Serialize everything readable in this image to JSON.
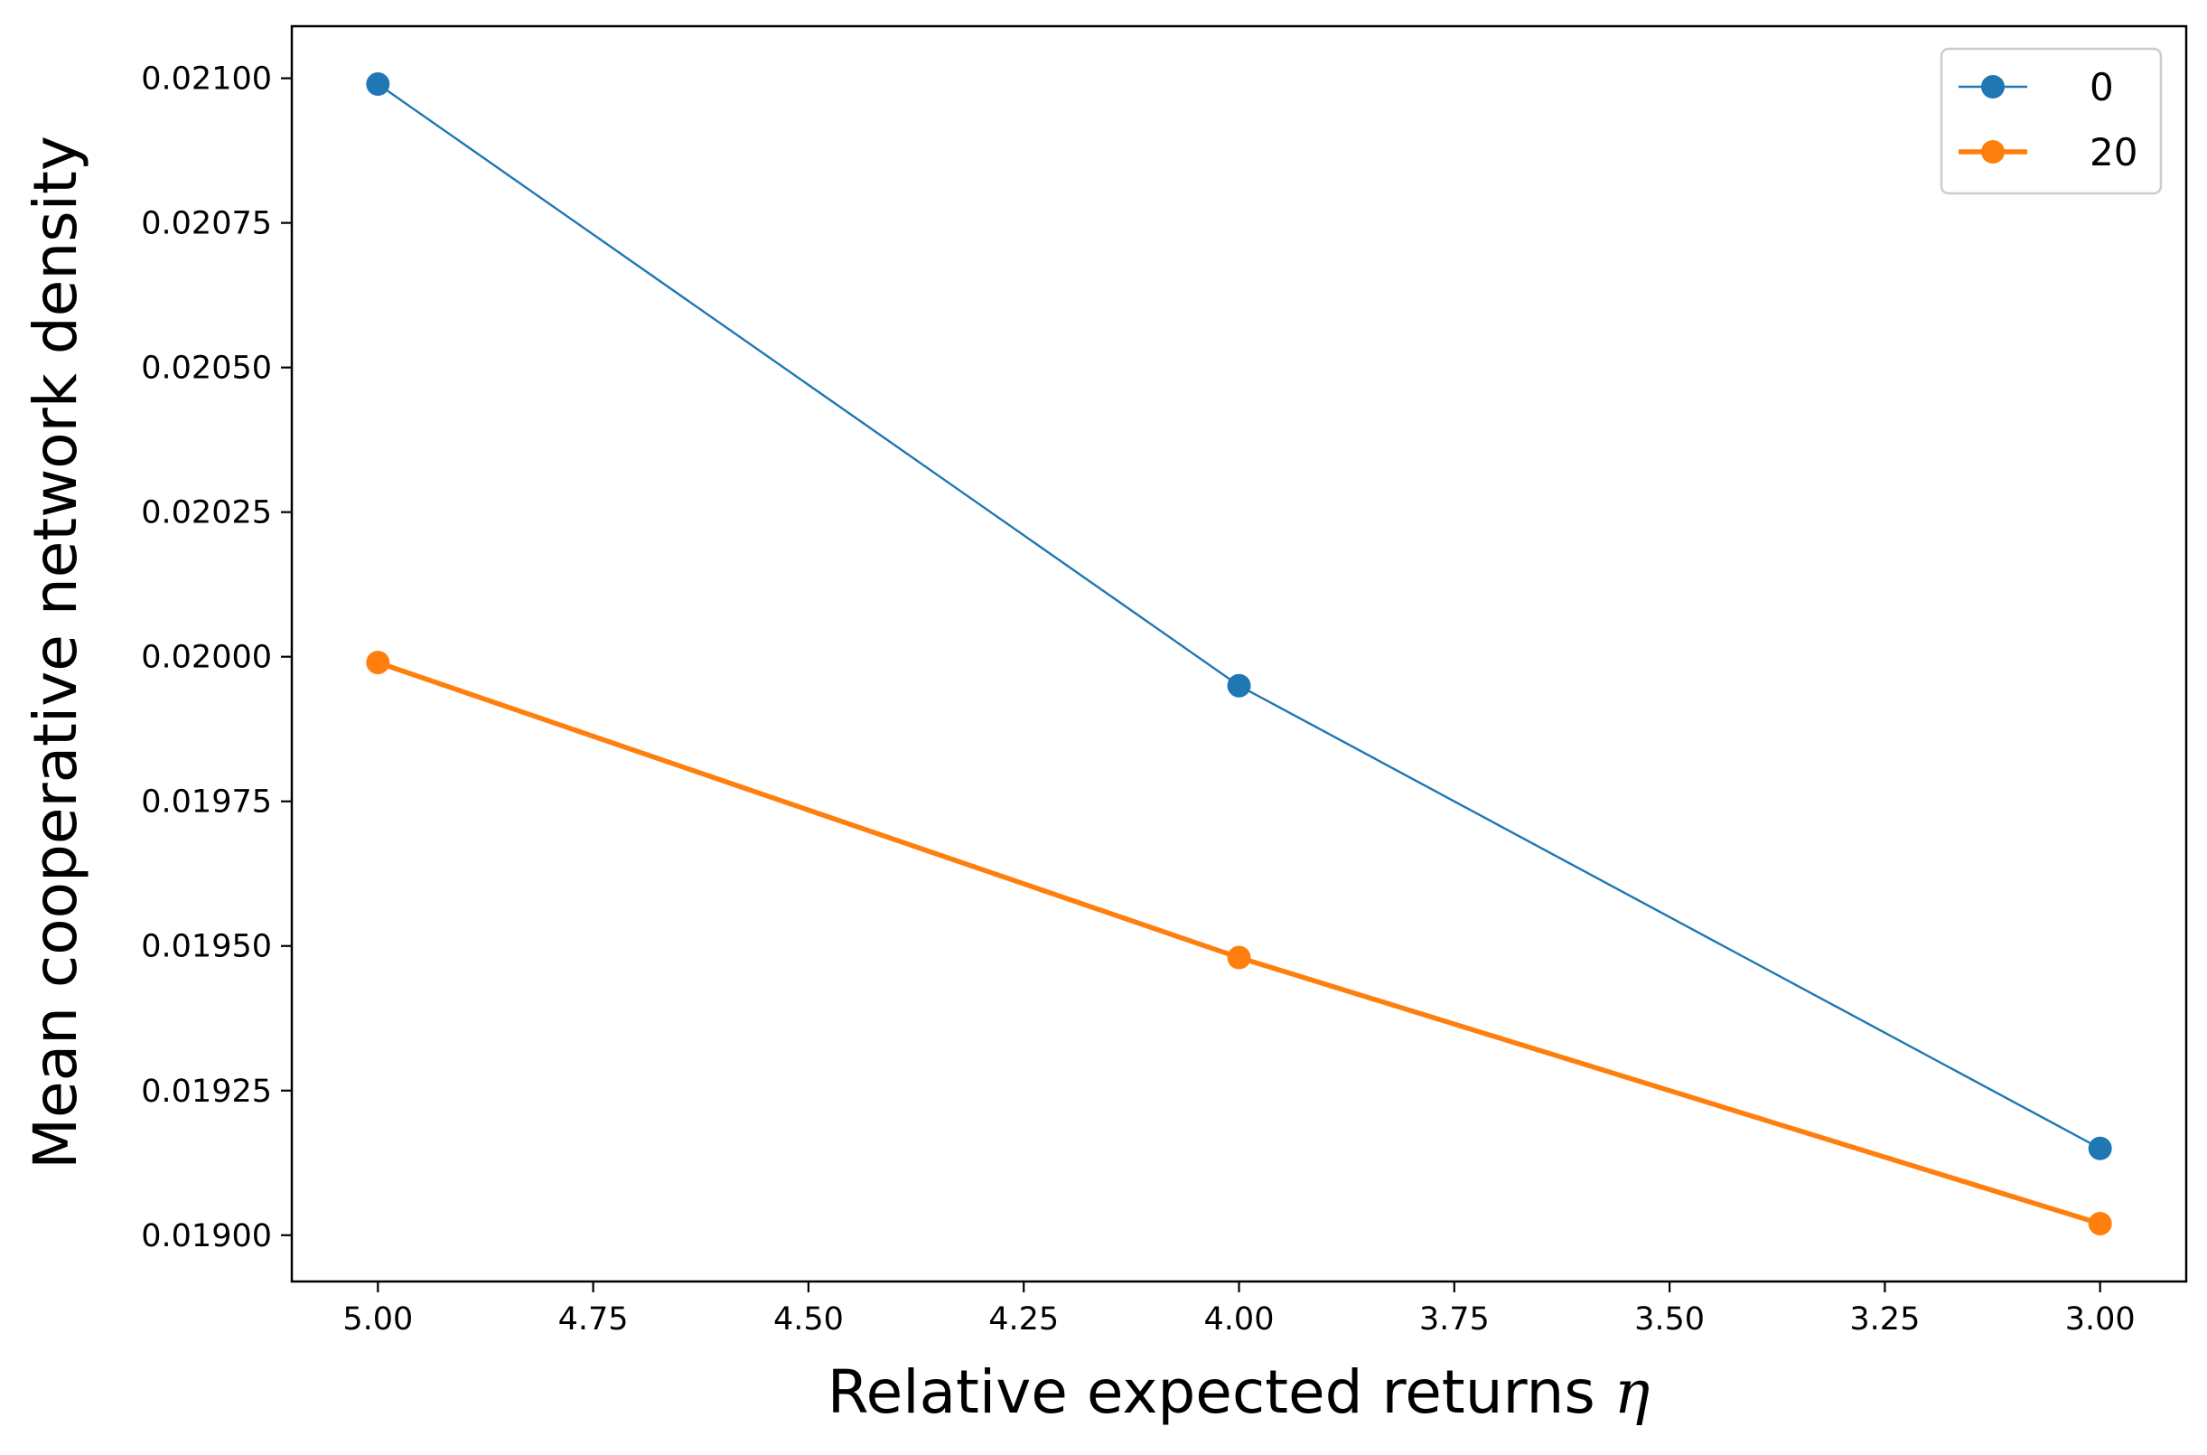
{
  "chart_data": {
    "type": "line",
    "xlabel": "Relative expected returns",
    "xlabel_symbol": "η",
    "ylabel": "Mean cooperative network density",
    "x_inverted": true,
    "xlim": [
      5.1,
      2.9
    ],
    "ylim": [
      0.01892,
      0.02109
    ],
    "xticks": [
      5.0,
      4.75,
      4.5,
      4.25,
      4.0,
      3.75,
      3.5,
      3.25,
      3.0
    ],
    "xtick_labels": [
      "5.00",
      "4.75",
      "4.50",
      "4.25",
      "4.00",
      "3.75",
      "3.50",
      "3.25",
      "3.00"
    ],
    "yticks": [
      0.019,
      0.01925,
      0.0195,
      0.01975,
      0.02,
      0.02025,
      0.0205,
      0.02075,
      0.021
    ],
    "ytick_labels": [
      "0.01900",
      "0.01925",
      "0.01950",
      "0.01975",
      "0.02000",
      "0.02025",
      "0.02050",
      "0.02075",
      "0.02100"
    ],
    "grid": false,
    "legend_position": "top-right",
    "series": [
      {
        "name": "0",
        "color": "#1f77b4",
        "x": [
          5.0,
          4.0,
          3.0
        ],
        "y": [
          0.02099,
          0.01995,
          0.01915
        ]
      },
      {
        "name": "20",
        "color": "#ff7f0e",
        "x": [
          5.0,
          4.0,
          3.0
        ],
        "y": [
          0.01999,
          0.01948,
          0.01902
        ]
      }
    ]
  }
}
